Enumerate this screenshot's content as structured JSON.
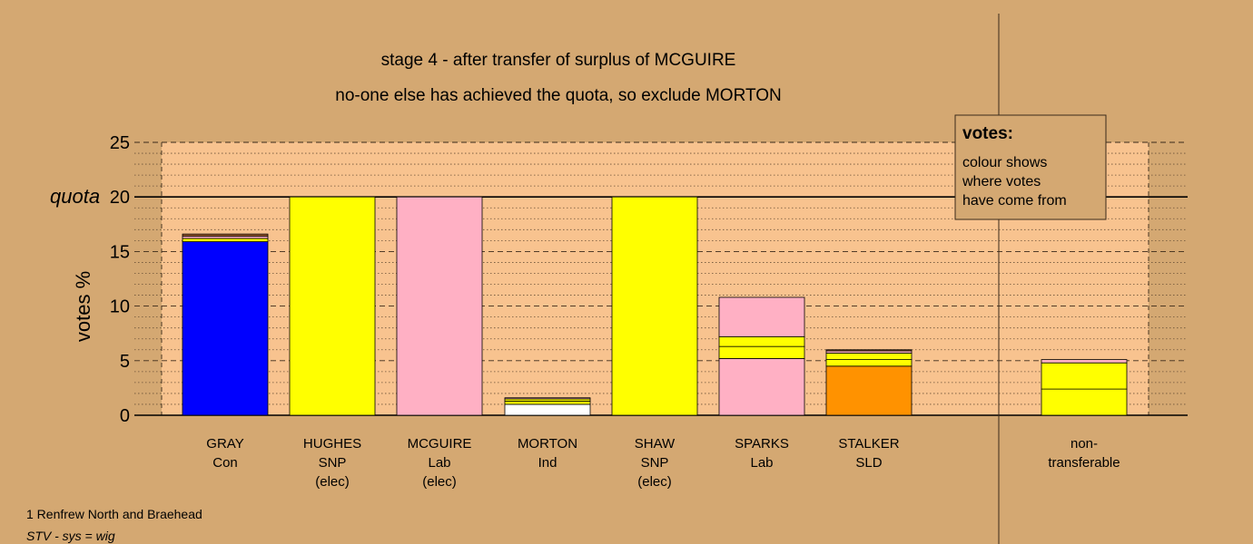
{
  "title_line1": "stage 4 - after transfer of surplus of MCGUIRE",
  "title_line2": "no-one else has achieved the quota, so exclude MORTON",
  "footer_line1": "1 Renfrew North and Braehead",
  "footer_line2": "STV - sys = wig",
  "legend": {
    "heading": "votes:",
    "lines": [
      "colour shows",
      "where votes",
      "have come from"
    ]
  },
  "colors": {
    "background": "#D4A872",
    "plot_area": "#F8C38F",
    "Con": "#0000FF",
    "SNP": "#FFFF00",
    "Lab": "#FFB0C4",
    "Ind": "#FFFFFF",
    "SLD": "#FF9200",
    "Other": "#9E5A2E"
  },
  "chart_data": {
    "type": "bar",
    "stacked": true,
    "ylabel": "votes %",
    "ylim": [
      0,
      25
    ],
    "yticks": [
      0,
      5,
      10,
      15,
      20,
      25
    ],
    "quota": 20,
    "quota_label": "quota",
    "grid": "dashed major every 5, dotted minor every 1",
    "legend_position": "top-right",
    "candidates": [
      {
        "name": "GRAY",
        "party": "Con",
        "note": "",
        "segments": [
          {
            "from": "Con",
            "value": 15.9
          },
          {
            "from": "SNP",
            "value": 0.3
          },
          {
            "from": "Lab",
            "value": 0.2
          },
          {
            "from": "Other",
            "value": 0.2
          }
        ]
      },
      {
        "name": "HUGHES",
        "party": "SNP",
        "note": "(elec)",
        "segments": [
          {
            "from": "SNP",
            "value": 20.0
          }
        ]
      },
      {
        "name": "MCGUIRE",
        "party": "Lab",
        "note": "(elec)",
        "segments": [
          {
            "from": "Lab",
            "value": 20.0
          }
        ]
      },
      {
        "name": "MORTON",
        "party": "Ind",
        "note": "",
        "segments": [
          {
            "from": "Ind",
            "value": 1.0
          },
          {
            "from": "SNP",
            "value": 0.3
          },
          {
            "from": "SNP",
            "value": 0.2
          },
          {
            "from": "Lab",
            "value": 0.1
          }
        ]
      },
      {
        "name": "SHAW",
        "party": "SNP",
        "note": "(elec)",
        "segments": [
          {
            "from": "SNP",
            "value": 20.0
          }
        ]
      },
      {
        "name": "SPARKS",
        "party": "Lab",
        "note": "",
        "segments": [
          {
            "from": "Lab",
            "value": 5.2
          },
          {
            "from": "SNP",
            "value": 1.1
          },
          {
            "from": "SNP",
            "value": 0.9
          },
          {
            "from": "Lab",
            "value": 3.6
          }
        ]
      },
      {
        "name": "STALKER",
        "party": "SLD",
        "note": "",
        "segments": [
          {
            "from": "SLD",
            "value": 4.5
          },
          {
            "from": "SNP",
            "value": 0.6
          },
          {
            "from": "SNP",
            "value": 0.6
          },
          {
            "from": "Lab",
            "value": 0.2
          },
          {
            "from": "Other",
            "value": 0.1
          }
        ]
      },
      {
        "name": "non-",
        "party": "transferable",
        "note": "",
        "nontransferable": true,
        "segments": [
          {
            "from": "SNP",
            "value": 2.4
          },
          {
            "from": "SNP",
            "value": 2.4
          },
          {
            "from": "Lab",
            "value": 0.3
          }
        ]
      }
    ]
  }
}
